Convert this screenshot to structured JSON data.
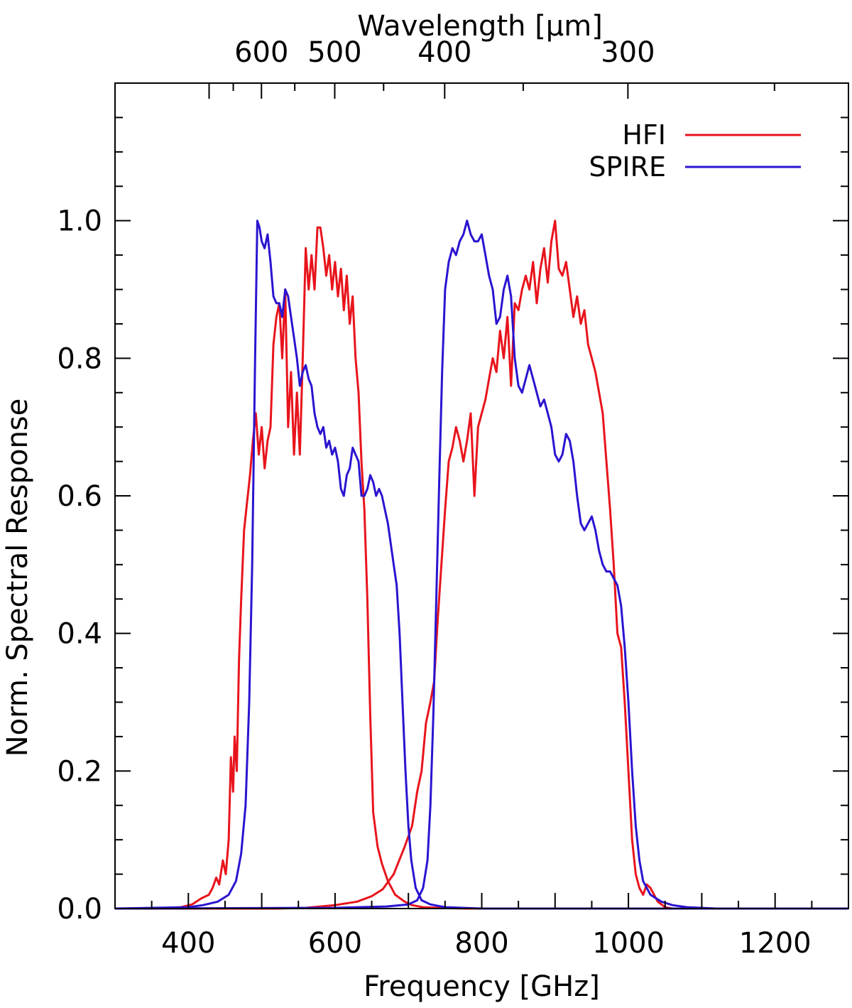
{
  "chart_data": {
    "type": "line",
    "xlabel": "Frequency [GHz]",
    "ylabel": "Norm. Spectral Response",
    "top_xlabel": "Wavelength [μm]",
    "xlim": [
      300,
      1300
    ],
    "ylim": [
      0,
      1.2
    ],
    "x_ticks": [
      400,
      600,
      800,
      1000,
      1200
    ],
    "x_tick_labels": [
      "400",
      "600",
      "800",
      "1000",
      "1200"
    ],
    "y_ticks": [
      0.0,
      0.2,
      0.4,
      0.6,
      0.8,
      1.0
    ],
    "y_tick_labels": [
      "0.0",
      "0.2",
      "0.4",
      "0.6",
      "0.8",
      "1.0"
    ],
    "top_ticks_um": [
      600,
      500,
      400,
      300
    ],
    "top_tick_labels": [
      "600",
      "500",
      "400",
      "300"
    ],
    "legend_position": "top-right",
    "grid": false,
    "series": [
      {
        "name": "HFI",
        "color": "#e8141c",
        "points": [
          [
            300,
            0.0
          ],
          [
            360,
            0.0
          ],
          [
            390,
            0.002
          ],
          [
            405,
            0.006
          ],
          [
            418,
            0.015
          ],
          [
            428,
            0.02
          ],
          [
            433,
            0.03
          ],
          [
            438,
            0.045
          ],
          [
            442,
            0.035
          ],
          [
            447,
            0.07
          ],
          [
            451,
            0.05
          ],
          [
            455,
            0.1
          ],
          [
            458,
            0.22
          ],
          [
            461,
            0.17
          ],
          [
            463,
            0.25
          ],
          [
            466,
            0.2
          ],
          [
            469,
            0.36
          ],
          [
            472,
            0.45
          ],
          [
            476,
            0.55
          ],
          [
            480,
            0.59
          ],
          [
            484,
            0.63
          ],
          [
            488,
            0.68
          ],
          [
            492,
            0.72
          ],
          [
            496,
            0.66
          ],
          [
            500,
            0.7
          ],
          [
            504,
            0.64
          ],
          [
            508,
            0.68
          ],
          [
            512,
            0.7
          ],
          [
            516,
            0.82
          ],
          [
            520,
            0.86
          ],
          [
            524,
            0.88
          ],
          [
            528,
            0.8
          ],
          [
            532,
            0.9
          ],
          [
            536,
            0.7
          ],
          [
            540,
            0.78
          ],
          [
            544,
            0.66
          ],
          [
            548,
            0.75
          ],
          [
            552,
            0.66
          ],
          [
            556,
            0.8
          ],
          [
            560,
            0.96
          ],
          [
            564,
            0.9
          ],
          [
            568,
            0.95
          ],
          [
            572,
            0.9
          ],
          [
            576,
            0.99
          ],
          [
            580,
            0.99
          ],
          [
            584,
            0.96
          ],
          [
            588,
            0.92
          ],
          [
            592,
            0.95
          ],
          [
            596,
            0.9
          ],
          [
            600,
            0.94
          ],
          [
            604,
            0.89
          ],
          [
            608,
            0.93
          ],
          [
            612,
            0.87
          ],
          [
            616,
            0.92
          ],
          [
            620,
            0.85
          ],
          [
            624,
            0.89
          ],
          [
            628,
            0.8
          ],
          [
            632,
            0.75
          ],
          [
            636,
            0.65
          ],
          [
            640,
            0.58
          ],
          [
            644,
            0.45
          ],
          [
            648,
            0.28
          ],
          [
            652,
            0.14
          ],
          [
            658,
            0.09
          ],
          [
            664,
            0.065
          ],
          [
            672,
            0.04
          ],
          [
            682,
            0.02
          ],
          [
            695,
            0.01
          ],
          [
            705,
            0.005
          ],
          [
            720,
            0.002
          ],
          [
            740,
            0.001
          ],
          [
            780,
            0.0
          ],
          [
            1300,
            0.0
          ]
        ]
      },
      {
        "name": "HFI",
        "color": "#e8141c",
        "points": [
          [
            300,
            0.0
          ],
          [
            520,
            0.0
          ],
          [
            560,
            0.001
          ],
          [
            600,
            0.005
          ],
          [
            630,
            0.01
          ],
          [
            650,
            0.018
          ],
          [
            665,
            0.028
          ],
          [
            680,
            0.05
          ],
          [
            695,
            0.09
          ],
          [
            705,
            0.12
          ],
          [
            712,
            0.17
          ],
          [
            718,
            0.2
          ],
          [
            724,
            0.27
          ],
          [
            730,
            0.3
          ],
          [
            735,
            0.33
          ],
          [
            740,
            0.42
          ],
          [
            745,
            0.5
          ],
          [
            750,
            0.58
          ],
          [
            755,
            0.65
          ],
          [
            760,
            0.67
          ],
          [
            765,
            0.7
          ],
          [
            770,
            0.68
          ],
          [
            775,
            0.65
          ],
          [
            780,
            0.68
          ],
          [
            785,
            0.72
          ],
          [
            790,
            0.6
          ],
          [
            795,
            0.7
          ],
          [
            800,
            0.72
          ],
          [
            805,
            0.74
          ],
          [
            810,
            0.77
          ],
          [
            815,
            0.8
          ],
          [
            820,
            0.78
          ],
          [
            825,
            0.84
          ],
          [
            830,
            0.8
          ],
          [
            835,
            0.86
          ],
          [
            840,
            0.76
          ],
          [
            845,
            0.88
          ],
          [
            850,
            0.87
          ],
          [
            855,
            0.9
          ],
          [
            860,
            0.92
          ],
          [
            865,
            0.9
          ],
          [
            870,
            0.94
          ],
          [
            875,
            0.88
          ],
          [
            880,
            0.93
          ],
          [
            885,
            0.96
          ],
          [
            890,
            0.91
          ],
          [
            895,
            0.97
          ],
          [
            900,
            1.0
          ],
          [
            905,
            0.93
          ],
          [
            910,
            0.92
          ],
          [
            915,
            0.94
          ],
          [
            920,
            0.9
          ],
          [
            925,
            0.86
          ],
          [
            930,
            0.89
          ],
          [
            935,
            0.85
          ],
          [
            940,
            0.87
          ],
          [
            945,
            0.82
          ],
          [
            950,
            0.8
          ],
          [
            955,
            0.78
          ],
          [
            960,
            0.75
          ],
          [
            965,
            0.72
          ],
          [
            970,
            0.65
          ],
          [
            975,
            0.58
          ],
          [
            980,
            0.5
          ],
          [
            985,
            0.4
          ],
          [
            990,
            0.38
          ],
          [
            995,
            0.3
          ],
          [
            1000,
            0.2
          ],
          [
            1005,
            0.1
          ],
          [
            1010,
            0.05
          ],
          [
            1015,
            0.03
          ],
          [
            1020,
            0.02
          ],
          [
            1025,
            0.035
          ],
          [
            1030,
            0.03
          ],
          [
            1040,
            0.01
          ],
          [
            1050,
            0.002
          ],
          [
            1060,
            0.0
          ],
          [
            1300,
            0.0
          ]
        ]
      },
      {
        "name": "SPIRE",
        "color": "#2a14d0",
        "points": [
          [
            300,
            0.0
          ],
          [
            400,
            0.002
          ],
          [
            420,
            0.005
          ],
          [
            440,
            0.01
          ],
          [
            455,
            0.02
          ],
          [
            465,
            0.04
          ],
          [
            472,
            0.08
          ],
          [
            478,
            0.15
          ],
          [
            483,
            0.3
          ],
          [
            487,
            0.5
          ],
          [
            491,
            0.8
          ],
          [
            494,
            1.0
          ],
          [
            497,
            0.99
          ],
          [
            500,
            0.97
          ],
          [
            504,
            0.96
          ],
          [
            508,
            0.98
          ],
          [
            512,
            0.94
          ],
          [
            516,
            0.89
          ],
          [
            520,
            0.88
          ],
          [
            524,
            0.88
          ],
          [
            528,
            0.86
          ],
          [
            532,
            0.9
          ],
          [
            536,
            0.89
          ],
          [
            540,
            0.86
          ],
          [
            544,
            0.83
          ],
          [
            548,
            0.8
          ],
          [
            552,
            0.76
          ],
          [
            556,
            0.78
          ],
          [
            560,
            0.79
          ],
          [
            564,
            0.77
          ],
          [
            568,
            0.76
          ],
          [
            572,
            0.72
          ],
          [
            576,
            0.7
          ],
          [
            580,
            0.69
          ],
          [
            584,
            0.7
          ],
          [
            588,
            0.67
          ],
          [
            592,
            0.68
          ],
          [
            596,
            0.66
          ],
          [
            600,
            0.67
          ],
          [
            604,
            0.65
          ],
          [
            608,
            0.61
          ],
          [
            612,
            0.6
          ],
          [
            616,
            0.63
          ],
          [
            620,
            0.64
          ],
          [
            624,
            0.67
          ],
          [
            628,
            0.66
          ],
          [
            632,
            0.65
          ],
          [
            636,
            0.6
          ],
          [
            640,
            0.6
          ],
          [
            644,
            0.61
          ],
          [
            648,
            0.63
          ],
          [
            652,
            0.62
          ],
          [
            656,
            0.6
          ],
          [
            660,
            0.61
          ],
          [
            664,
            0.6
          ],
          [
            668,
            0.58
          ],
          [
            672,
            0.56
          ],
          [
            676,
            0.53
          ],
          [
            680,
            0.5
          ],
          [
            684,
            0.47
          ],
          [
            688,
            0.4
          ],
          [
            692,
            0.3
          ],
          [
            696,
            0.2
          ],
          [
            700,
            0.12
          ],
          [
            704,
            0.07
          ],
          [
            710,
            0.03
          ],
          [
            718,
            0.012
          ],
          [
            730,
            0.006
          ],
          [
            750,
            0.002
          ],
          [
            800,
            0.0
          ],
          [
            1300,
            0.0
          ]
        ]
      },
      {
        "name": "SPIRE",
        "color": "#2a14d0",
        "points": [
          [
            300,
            0.0
          ],
          [
            600,
            0.001
          ],
          [
            670,
            0.003
          ],
          [
            700,
            0.006
          ],
          [
            712,
            0.012
          ],
          [
            720,
            0.03
          ],
          [
            726,
            0.07
          ],
          [
            730,
            0.15
          ],
          [
            734,
            0.28
          ],
          [
            738,
            0.45
          ],
          [
            742,
            0.62
          ],
          [
            746,
            0.78
          ],
          [
            750,
            0.9
          ],
          [
            755,
            0.94
          ],
          [
            760,
            0.96
          ],
          [
            765,
            0.95
          ],
          [
            770,
            0.97
          ],
          [
            775,
            0.98
          ],
          [
            780,
            1.0
          ],
          [
            785,
            0.98
          ],
          [
            790,
            0.97
          ],
          [
            795,
            0.97
          ],
          [
            800,
            0.98
          ],
          [
            805,
            0.95
          ],
          [
            810,
            0.92
          ],
          [
            815,
            0.9
          ],
          [
            820,
            0.85
          ],
          [
            825,
            0.86
          ],
          [
            830,
            0.9
          ],
          [
            835,
            0.92
          ],
          [
            840,
            0.89
          ],
          [
            845,
            0.8
          ],
          [
            850,
            0.76
          ],
          [
            855,
            0.75
          ],
          [
            860,
            0.77
          ],
          [
            865,
            0.79
          ],
          [
            870,
            0.77
          ],
          [
            875,
            0.75
          ],
          [
            880,
            0.73
          ],
          [
            885,
            0.74
          ],
          [
            890,
            0.72
          ],
          [
            895,
            0.7
          ],
          [
            900,
            0.66
          ],
          [
            905,
            0.65
          ],
          [
            910,
            0.66
          ],
          [
            915,
            0.69
          ],
          [
            920,
            0.68
          ],
          [
            925,
            0.65
          ],
          [
            930,
            0.6
          ],
          [
            935,
            0.56
          ],
          [
            940,
            0.55
          ],
          [
            945,
            0.56
          ],
          [
            950,
            0.57
          ],
          [
            955,
            0.55
          ],
          [
            960,
            0.52
          ],
          [
            965,
            0.5
          ],
          [
            970,
            0.49
          ],
          [
            975,
            0.49
          ],
          [
            980,
            0.48
          ],
          [
            985,
            0.47
          ],
          [
            990,
            0.44
          ],
          [
            995,
            0.38
          ],
          [
            1000,
            0.3
          ],
          [
            1005,
            0.2
          ],
          [
            1010,
            0.12
          ],
          [
            1015,
            0.07
          ],
          [
            1020,
            0.04
          ],
          [
            1030,
            0.02
          ],
          [
            1045,
            0.01
          ],
          [
            1060,
            0.005
          ],
          [
            1080,
            0.002
          ],
          [
            1120,
            0.0
          ],
          [
            1300,
            0.0
          ]
        ]
      }
    ]
  }
}
